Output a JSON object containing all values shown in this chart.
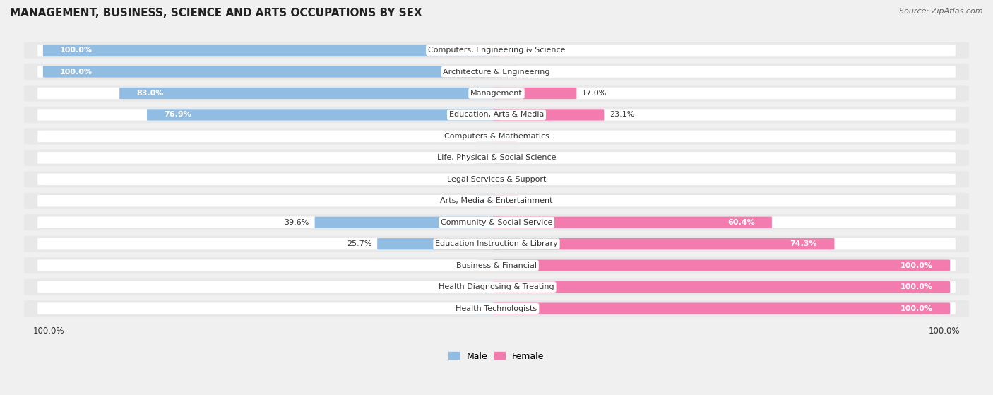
{
  "title": "MANAGEMENT, BUSINESS, SCIENCE AND ARTS OCCUPATIONS BY SEX",
  "source": "Source: ZipAtlas.com",
  "categories": [
    "Computers, Engineering & Science",
    "Architecture & Engineering",
    "Management",
    "Education, Arts & Media",
    "Computers & Mathematics",
    "Life, Physical & Social Science",
    "Legal Services & Support",
    "Arts, Media & Entertainment",
    "Community & Social Service",
    "Education Instruction & Library",
    "Business & Financial",
    "Health Diagnosing & Treating",
    "Health Technologists"
  ],
  "male": [
    100.0,
    100.0,
    83.0,
    76.9,
    0.0,
    0.0,
    0.0,
    0.0,
    39.6,
    25.7,
    0.0,
    0.0,
    0.0
  ],
  "female": [
    0.0,
    0.0,
    17.0,
    23.1,
    0.0,
    0.0,
    0.0,
    0.0,
    60.4,
    74.3,
    100.0,
    100.0,
    100.0
  ],
  "male_color": "#92bde3",
  "male_color_light": "#c8ddf0",
  "female_color": "#f47bad",
  "female_color_light": "#f9bcd2",
  "bg_color": "#f0f0f0",
  "row_bg_color": "#e8e8e8",
  "bar_bg_color": "#ffffff",
  "text_dark": "#333333",
  "text_label_inside": "#ffffff",
  "legend_male": "Male",
  "legend_female": "Female",
  "zero_stub": 0.04,
  "bottom_labels": [
    "100.0%",
    "100.0%"
  ]
}
